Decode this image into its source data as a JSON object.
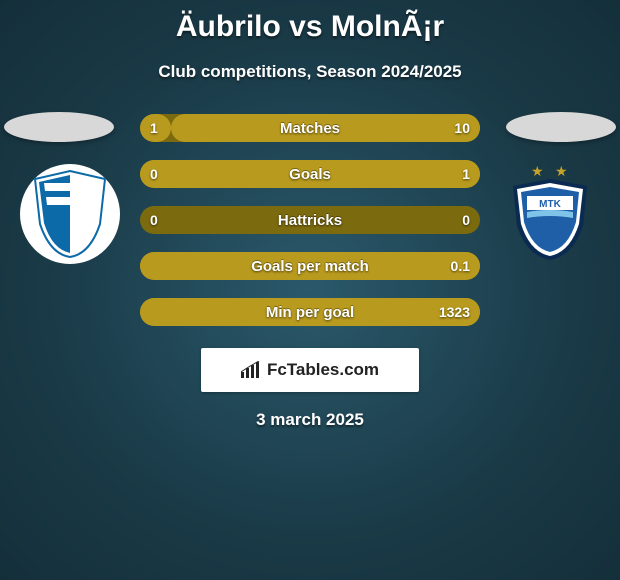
{
  "header": {
    "title": "Äubrilo vs MolnÃ¡r",
    "subtitle": "Club competitions, Season 2024/2025"
  },
  "teams": {
    "left_logo_bg": "#ffffff",
    "left_logo_primary": "#0d6aa8",
    "right_logo_primary": "#1e5fa8",
    "right_logo_accent": "#c9a227"
  },
  "stats": [
    {
      "label": "Matches",
      "left_val": "1",
      "right_val": "10",
      "left_pct": 9,
      "right_pct": 91
    },
    {
      "label": "Goals",
      "left_val": "0",
      "right_val": "1",
      "left_pct": 0,
      "right_pct": 100
    },
    {
      "label": "Hattricks",
      "left_val": "0",
      "right_val": "0",
      "left_pct": 0,
      "right_pct": 0
    },
    {
      "label": "Goals per match",
      "left_val": "",
      "right_val": "0.1",
      "left_pct": 0,
      "right_pct": 100
    },
    {
      "label": "Min per goal",
      "left_val": "",
      "right_val": "1323",
      "left_pct": 0,
      "right_pct": 100
    }
  ],
  "colors": {
    "bar_track": "#7c6a0f",
    "bar_fill": "#b89a1e"
  },
  "brand": {
    "text": "FcTables.com"
  },
  "date": "3 march 2025"
}
